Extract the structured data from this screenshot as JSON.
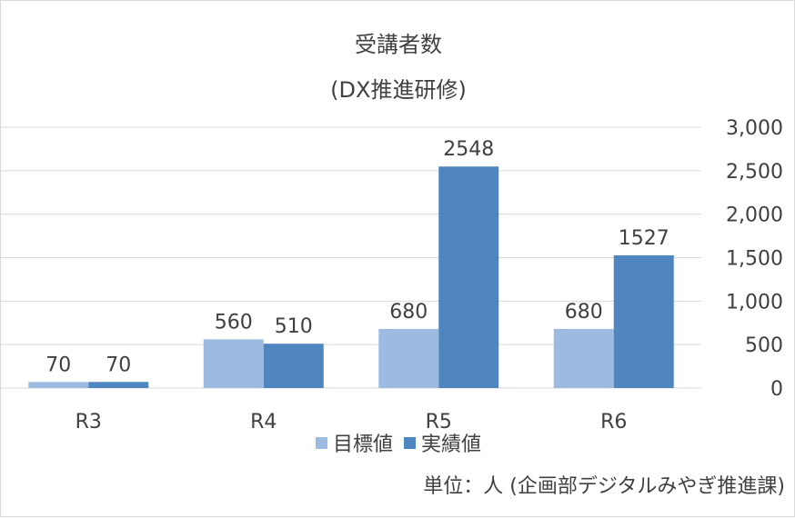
{
  "title_line1": "受講者数",
  "title_line2": "(DX推進研修)",
  "unit_note": "単位：人 (企画部デジタルみやぎ推進課)",
  "colors": {
    "target": "#9dbbe0",
    "actual": "#4f86bf",
    "grid": "#d9d9d9",
    "text": "#404040"
  },
  "chart_data": {
    "type": "bar",
    "categories": [
      "R3",
      "R4",
      "R5",
      "R6"
    ],
    "series": [
      {
        "name": "目標値",
        "values": [
          70,
          560,
          680,
          680
        ],
        "labels": [
          "70",
          "560",
          "680",
          "680"
        ]
      },
      {
        "name": "実績値",
        "values": [
          70,
          510,
          2548,
          1527
        ],
        "labels": [
          "70",
          "510",
          "2548",
          "1527"
        ]
      }
    ],
    "ylim": [
      0,
      3000
    ],
    "yticks": [
      0,
      500,
      1000,
      1500,
      2000,
      2500,
      3000
    ],
    "ytick_labels": [
      "0",
      "500",
      "1,000",
      "1,500",
      "2,000",
      "2,500",
      "3,000"
    ],
    "y_axis_side": "right",
    "grid": true,
    "legend_position": "bottom"
  }
}
